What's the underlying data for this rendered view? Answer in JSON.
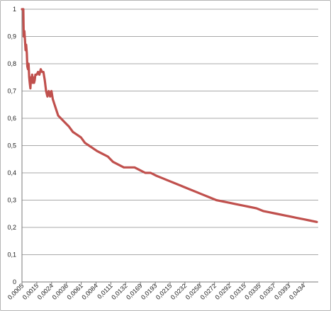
{
  "chart_data": {
    "type": "line",
    "title": "",
    "xlabel": "",
    "ylabel": "",
    "ylim": [
      0,
      1
    ],
    "yticks": [
      "0",
      "0,1",
      "0,2",
      "0,3",
      "0,4",
      "0,5",
      "0,6",
      "0,7",
      "0,8",
      "0,9",
      "1"
    ],
    "categories": [
      "0,0005",
      "0,0015",
      "0,0024",
      "0,0036",
      "0,0061",
      "0,0084",
      "0,0111",
      "0,0132",
      "0,0169",
      "0,0193",
      "0,0215",
      "0,0232",
      "0,0258",
      "0,0272",
      "0,0292",
      "0,0315",
      "0,0335",
      "0,0357",
      "0,0393",
      "0,0434"
    ],
    "grid": true,
    "legend": "none",
    "series": [
      {
        "color": "#c0504d",
        "values": [
          [
            0.0,
            1.0
          ],
          [
            0.05,
            1.0
          ],
          [
            0.1,
            1.0
          ],
          [
            0.13,
            0.9
          ],
          [
            0.18,
            0.92
          ],
          [
            0.22,
            0.89
          ],
          [
            0.27,
            0.85
          ],
          [
            0.31,
            0.87
          ],
          [
            0.36,
            0.84
          ],
          [
            0.4,
            0.79
          ],
          [
            0.45,
            0.78
          ],
          [
            0.49,
            0.8
          ],
          [
            0.54,
            0.75
          ],
          [
            0.58,
            0.73
          ],
          [
            0.63,
            0.71
          ],
          [
            0.67,
            0.75
          ],
          [
            0.72,
            0.74
          ],
          [
            0.76,
            0.76
          ],
          [
            0.81,
            0.73
          ],
          [
            0.85,
            0.75
          ],
          [
            0.9,
            0.73
          ],
          [
            0.95,
            0.74
          ],
          [
            1.0,
            0.76
          ],
          [
            1.1,
            0.76
          ],
          [
            1.2,
            0.77
          ],
          [
            1.3,
            0.76
          ],
          [
            1.4,
            0.78
          ],
          [
            1.5,
            0.77
          ],
          [
            1.6,
            0.77
          ],
          [
            1.7,
            0.74
          ],
          [
            1.8,
            0.7
          ],
          [
            1.9,
            0.68
          ],
          [
            2.0,
            0.7
          ],
          [
            2.1,
            0.68
          ],
          [
            2.2,
            0.7
          ],
          [
            2.3,
            0.67
          ],
          [
            2.5,
            0.64
          ],
          [
            2.7,
            0.61
          ],
          [
            2.9,
            0.6
          ],
          [
            3.1,
            0.59
          ],
          [
            3.3,
            0.58
          ],
          [
            3.5,
            0.57
          ],
          [
            3.8,
            0.55
          ],
          [
            4.1,
            0.54
          ],
          [
            4.4,
            0.53
          ],
          [
            4.7,
            0.51
          ],
          [
            5.0,
            0.5
          ],
          [
            5.3,
            0.49
          ],
          [
            5.6,
            0.48
          ],
          [
            6.0,
            0.47
          ],
          [
            6.4,
            0.46
          ],
          [
            6.8,
            0.44
          ],
          [
            7.2,
            0.43
          ],
          [
            7.6,
            0.42
          ],
          [
            8.0,
            0.42
          ],
          [
            8.4,
            0.42
          ],
          [
            8.8,
            0.41
          ],
          [
            9.2,
            0.4
          ],
          [
            9.6,
            0.4
          ],
          [
            10.0,
            0.39
          ],
          [
            10.5,
            0.38
          ],
          [
            11.0,
            0.37
          ],
          [
            11.5,
            0.36
          ],
          [
            12.0,
            0.35
          ],
          [
            12.5,
            0.34
          ],
          [
            13.0,
            0.33
          ],
          [
            13.5,
            0.32
          ],
          [
            14.0,
            0.31
          ],
          [
            14.5,
            0.3
          ],
          [
            15.0,
            0.295
          ],
          [
            15.5,
            0.29
          ],
          [
            16.0,
            0.285
          ],
          [
            16.5,
            0.28
          ],
          [
            17.0,
            0.275
          ],
          [
            17.5,
            0.27
          ],
          [
            18.0,
            0.26
          ],
          [
            18.5,
            0.255
          ],
          [
            19.0,
            0.25
          ],
          [
            19.5,
            0.245
          ],
          [
            20.0,
            0.24
          ],
          [
            20.5,
            0.235
          ],
          [
            21.0,
            0.23
          ],
          [
            21.5,
            0.225
          ],
          [
            22.0,
            0.22
          ]
        ]
      }
    ]
  }
}
